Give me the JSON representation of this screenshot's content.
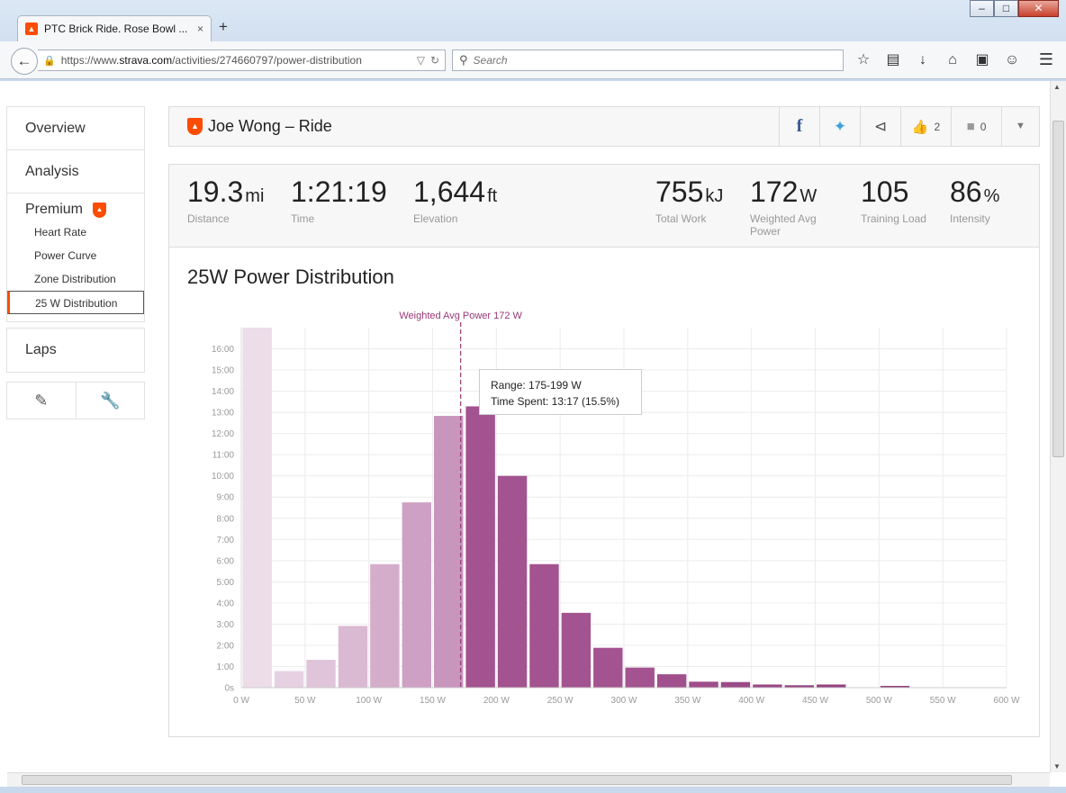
{
  "browser": {
    "tab_title": "PTC Brick Ride. Rose Bowl ...",
    "tab_close": "×",
    "new_tab": "+",
    "url_prefix": "https://www.",
    "url_host": "strava.com",
    "url_path": "/activities/274660797/power-distribution",
    "search_placeholder": "Search"
  },
  "sidebar": {
    "overview": "Overview",
    "analysis": "Analysis",
    "premium": "Premium",
    "sub_items": [
      "Heart Rate",
      "Power Curve",
      "Zone Distribution",
      "25 W Distribution"
    ],
    "laps": "Laps"
  },
  "header": {
    "title": "Joe Wong – Ride",
    "kudos_count": "2",
    "comment_count": "0"
  },
  "stats": [
    {
      "value": "19.3",
      "unit": "mi",
      "label": "Distance"
    },
    {
      "value": "1:21:19",
      "unit": "",
      "label": "Time"
    },
    {
      "value": "1,644",
      "unit": "ft",
      "label": "Elevation"
    },
    {
      "value": "755",
      "unit": "kJ",
      "label": "Total Work"
    },
    {
      "value": "172",
      "unit": "W",
      "label": "Weighted Avg Power"
    },
    {
      "value": "105",
      "unit": "",
      "label": "Training Load"
    },
    {
      "value": "86",
      "unit": "%",
      "label": "Intensity"
    }
  ],
  "chart_data": {
    "type": "bar",
    "title": "25W Power Distribution",
    "xlabel": "",
    "ylabel": "",
    "x_bins_start_w": [
      0,
      25,
      50,
      75,
      100,
      125,
      150,
      175,
      200,
      225,
      250,
      275,
      300,
      325,
      350,
      375,
      400,
      425,
      450,
      475,
      500
    ],
    "bin_width_w": 25,
    "values_seconds": [
      1020,
      47,
      79,
      175,
      350,
      525,
      770,
      797,
      600,
      350,
      212,
      113,
      57,
      38,
      17,
      16,
      9,
      7,
      9,
      0,
      5
    ],
    "xlim": [
      0,
      600
    ],
    "ylim": [
      0,
      1020
    ],
    "x_ticks": [
      "0 W",
      "50 W",
      "100 W",
      "150 W",
      "200 W",
      "250 W",
      "300 W",
      "350 W",
      "400 W",
      "450 W",
      "500 W",
      "550 W",
      "600 W"
    ],
    "y_ticks": [
      "0s",
      "1:00",
      "2:00",
      "3:00",
      "4:00",
      "5:00",
      "6:00",
      "7:00",
      "8:00",
      "9:00",
      "10:00",
      "11:00",
      "12:00",
      "13:00",
      "14:00",
      "15:00",
      "16:00"
    ],
    "reference_line": {
      "value_w": 172,
      "label": "Weighted Avg Power 172 W"
    },
    "grid": true,
    "colors": {
      "light": "#ecdde9",
      "mid": "#c895bc",
      "dark": "#a3538f",
      "reference": "#9b3878"
    }
  },
  "tooltip": {
    "range": "Range: 175-199 W",
    "time_spent": "Time Spent: 13:17 (15.5%)"
  }
}
